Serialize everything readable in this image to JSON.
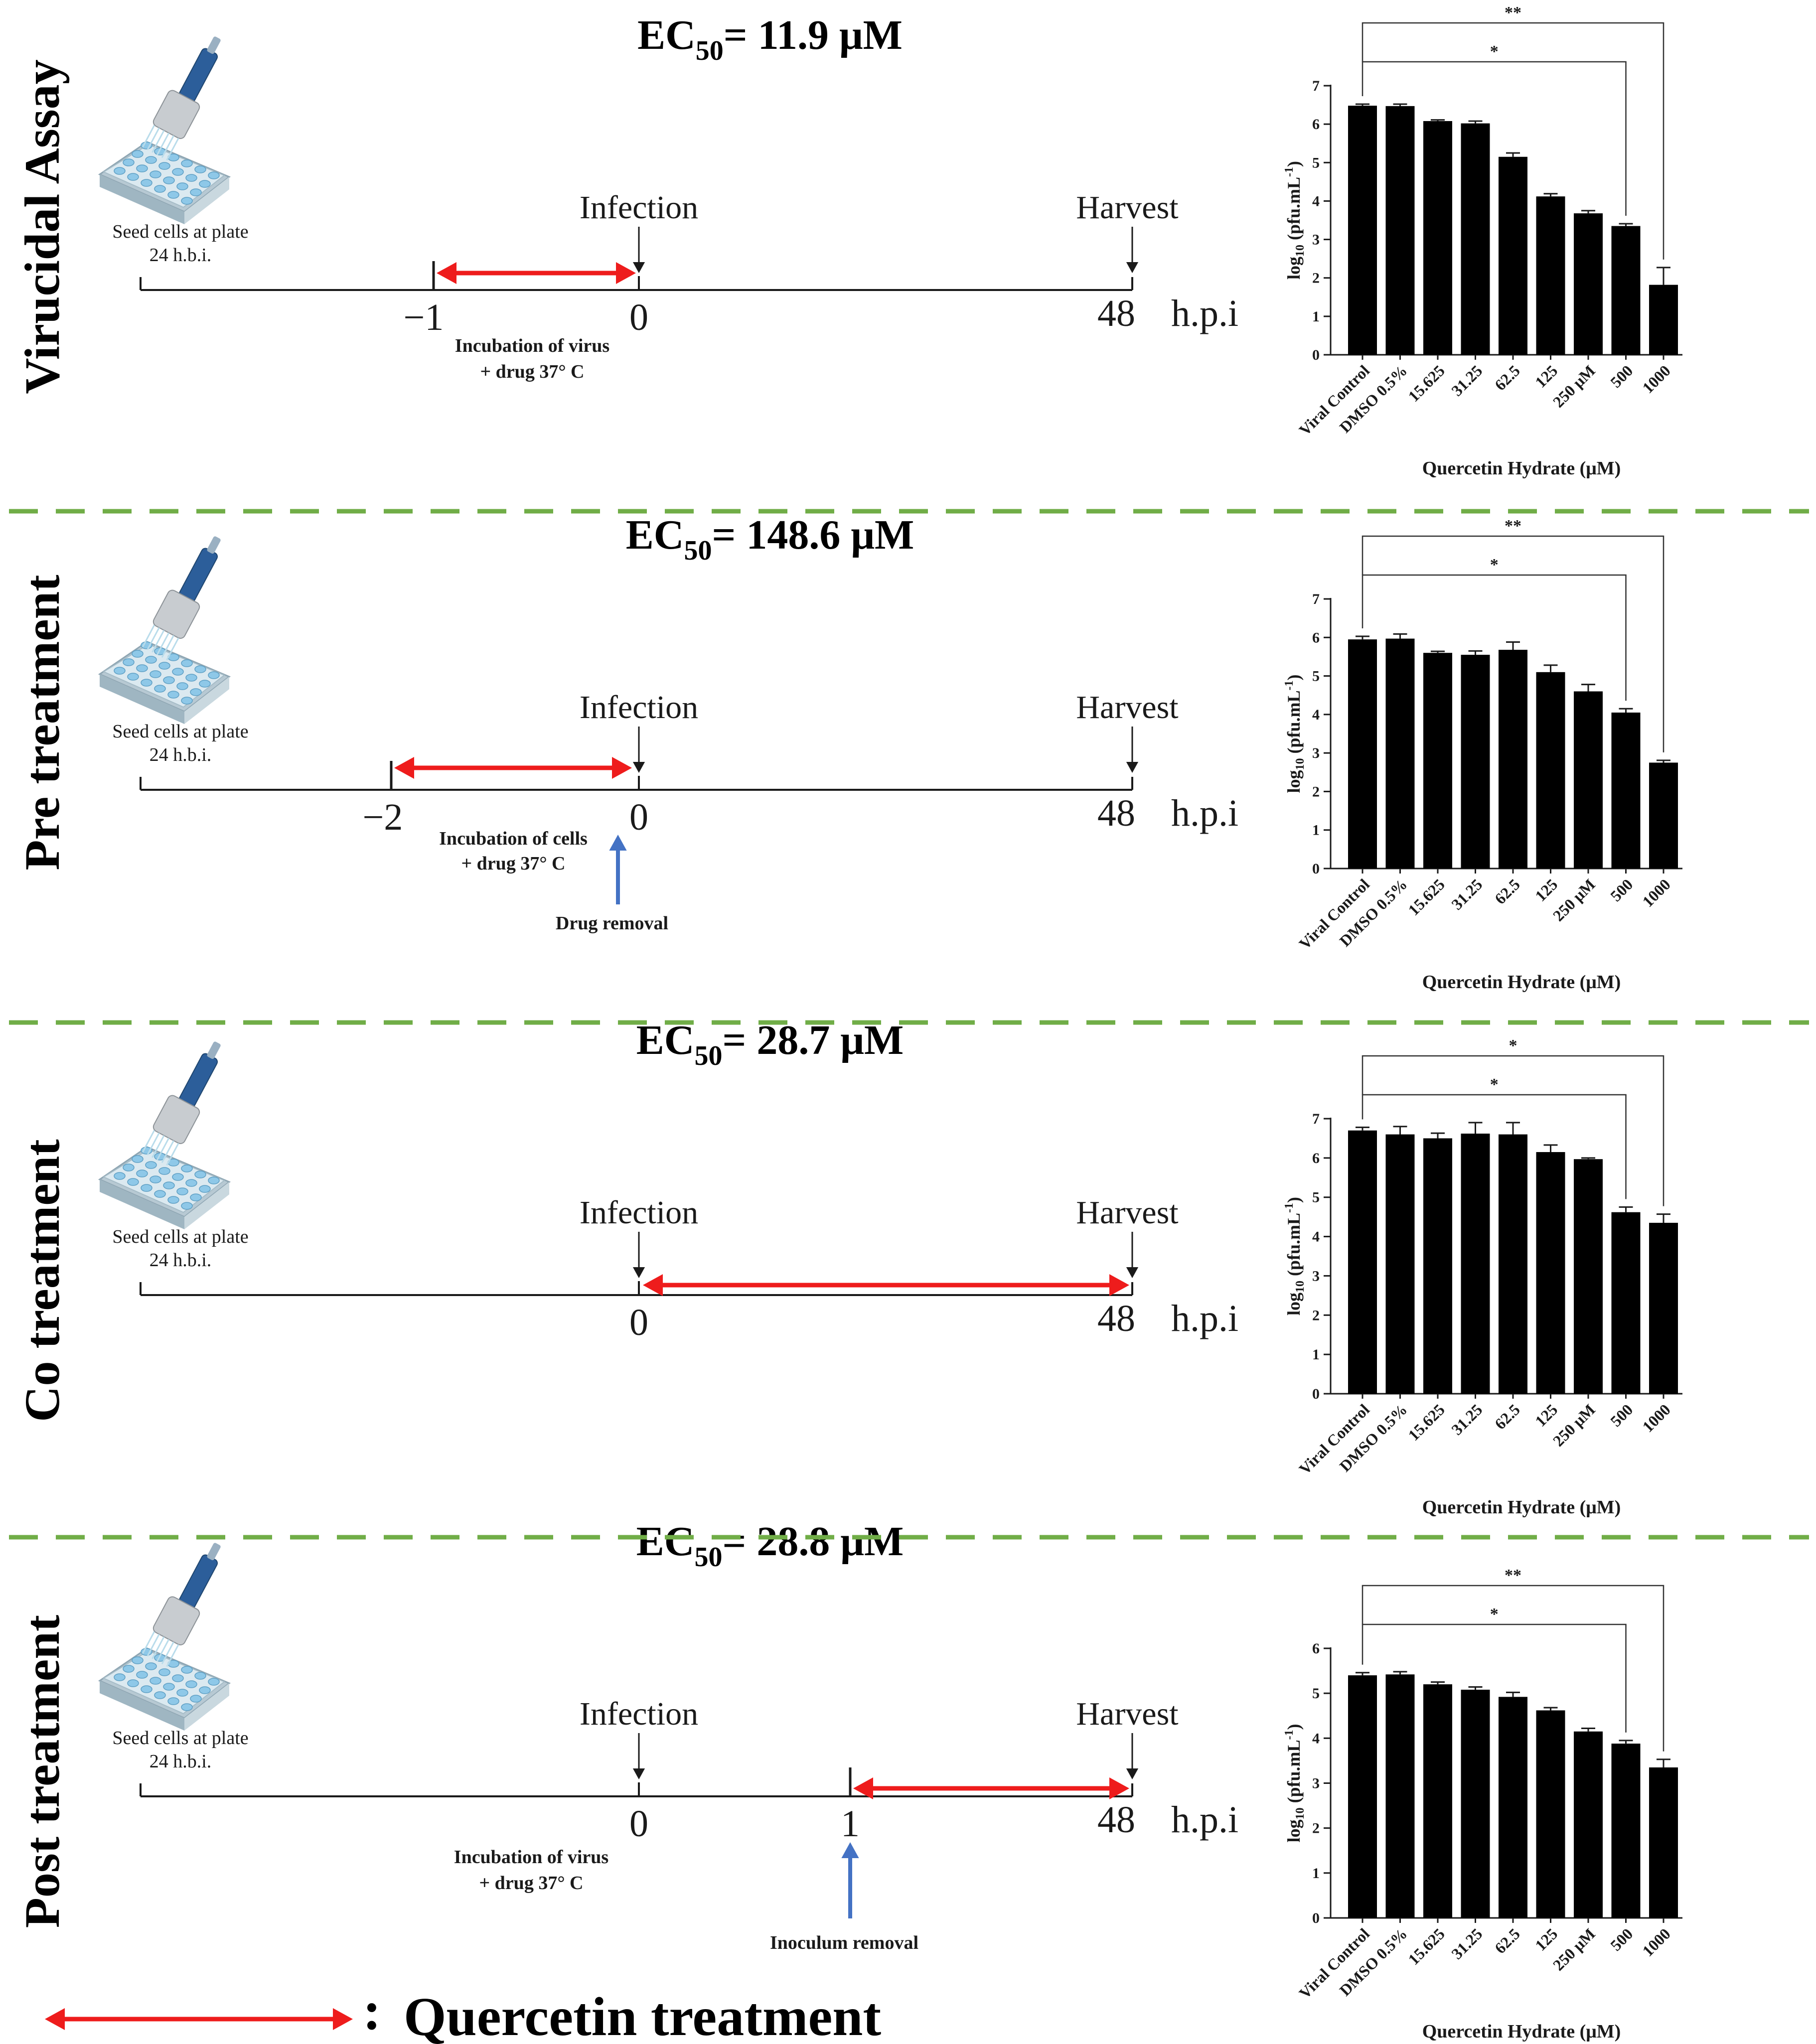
{
  "colors": {
    "treatment": "#ee1c1c",
    "removal": "#4472c4",
    "divider": "#70ad47",
    "bar": "#000000",
    "ink": "#1a1a1a"
  },
  "common": {
    "seed_label": "Seed cells at plate",
    "seed_time": "24 h.b.i.",
    "infection": "Infection",
    "harvest": "Harvest",
    "unit": "h.p.i",
    "ylabel_main": "log",
    "ylabel_sub": "10",
    "ylabel_unit": " (pfu.mL",
    "ylabel_sup": "-1",
    "ylabel_close": ")",
    "legend_colon": ":",
    "legend_text": "Quercetin treatment"
  },
  "panels": [
    {
      "title": "Virucidal Assay",
      "ec_prefix": "EC",
      "ec_sub": "50",
      "ec_value": "= 11.9 μM",
      "ticks": {
        "start": "−1",
        "zero": "0",
        "end": "48"
      },
      "note": [
        "Incubation of virus",
        "+ drug 37° C"
      ],
      "removal": "",
      "chart_data": {
        "type": "bar",
        "categories": [
          "Viral Control",
          "DMSO 0.5%",
          "15.625",
          "31.25",
          "62.5",
          "125",
          "250 μM",
          "500",
          "1000"
        ],
        "values": [
          6.48,
          6.47,
          6.08,
          6.02,
          5.15,
          4.12,
          3.68,
          3.35,
          1.82
        ],
        "errors": [
          0.04,
          0.05,
          0.03,
          0.06,
          0.1,
          0.07,
          0.07,
          0.06,
          0.45
        ],
        "ylim": [
          0,
          7
        ],
        "yticks": [
          "0",
          "1",
          "2",
          "3",
          "4",
          "5",
          "6",
          "7"
        ],
        "xlabel": "Quercetin Hydrate (μM)",
        "significance": [
          "*",
          "**"
        ]
      }
    },
    {
      "title": "Pre treatment",
      "ec_prefix": "EC",
      "ec_sub": "50",
      "ec_value": "= 148.6 μM",
      "ticks": {
        "start": "−2",
        "zero": "0",
        "end": "48"
      },
      "note": [
        "Incubation of cells",
        "+ drug 37° C"
      ],
      "removal": "Drug removal",
      "chart_data": {
        "type": "bar",
        "categories": [
          "Viral Control",
          "DMSO 0.5%",
          "15.625",
          "31.25",
          "62.5",
          "125",
          "250 μM",
          "500",
          "1000"
        ],
        "values": [
          5.95,
          5.97,
          5.6,
          5.55,
          5.68,
          5.1,
          4.6,
          4.05,
          2.75
        ],
        "errors": [
          0.08,
          0.12,
          0.04,
          0.1,
          0.2,
          0.18,
          0.18,
          0.1,
          0.06
        ],
        "ylim": [
          0,
          7
        ],
        "yticks": [
          "0",
          "1",
          "2",
          "3",
          "4",
          "5",
          "6",
          "7"
        ],
        "xlabel": "Quercetin Hydrate (μM)",
        "significance": [
          "*",
          "**"
        ]
      }
    },
    {
      "title": "Co treatment",
      "ec_prefix": "EC",
      "ec_sub": "50",
      "ec_value": "= 28.7 μM",
      "ticks": {
        "start": "",
        "zero": "0",
        "end": "48"
      },
      "note": [],
      "removal": "",
      "chart_data": {
        "type": "bar",
        "categories": [
          "Viral Control",
          "DMSO 0.5%",
          "15.625",
          "31.25",
          "62.5",
          "125",
          "250 μM",
          "500",
          "1000"
        ],
        "values": [
          6.7,
          6.6,
          6.5,
          6.62,
          6.6,
          6.15,
          5.97,
          4.62,
          4.35
        ],
        "errors": [
          0.08,
          0.2,
          0.13,
          0.28,
          0.3,
          0.18,
          0.03,
          0.13,
          0.22
        ],
        "ylim": [
          0,
          7
        ],
        "yticks": [
          "0",
          "1",
          "2",
          "3",
          "4",
          "5",
          "6",
          "7"
        ],
        "xlabel": "Quercetin Hydrate (μM)",
        "significance": [
          "*",
          "*"
        ]
      }
    },
    {
      "title": "Post treatment",
      "ec_prefix": "EC",
      "ec_sub": "50",
      "ec_value": "= 28.8 μM",
      "ticks": {
        "start": "1",
        "zero": "0",
        "end": "48"
      },
      "note": [
        "Incubation of virus",
        "+ drug 37° C"
      ],
      "removal": "Inoculum removal",
      "chart_data": {
        "type": "bar",
        "categories": [
          "Viral Control",
          "DMSO 0.5%",
          "15.625",
          "31.25",
          "62.5",
          "125",
          "250 μM",
          "500",
          "1000"
        ],
        "values": [
          5.4,
          5.42,
          5.2,
          5.08,
          4.92,
          4.62,
          4.15,
          3.88,
          3.35
        ],
        "errors": [
          0.06,
          0.06,
          0.05,
          0.06,
          0.1,
          0.06,
          0.07,
          0.07,
          0.18
        ],
        "ylim": [
          0,
          6
        ],
        "yticks": [
          "0",
          "1",
          "2",
          "3",
          "4",
          "5",
          "6"
        ],
        "xlabel": "Quercetin Hydrate (μM)",
        "significance": [
          "*",
          "**"
        ]
      }
    }
  ]
}
